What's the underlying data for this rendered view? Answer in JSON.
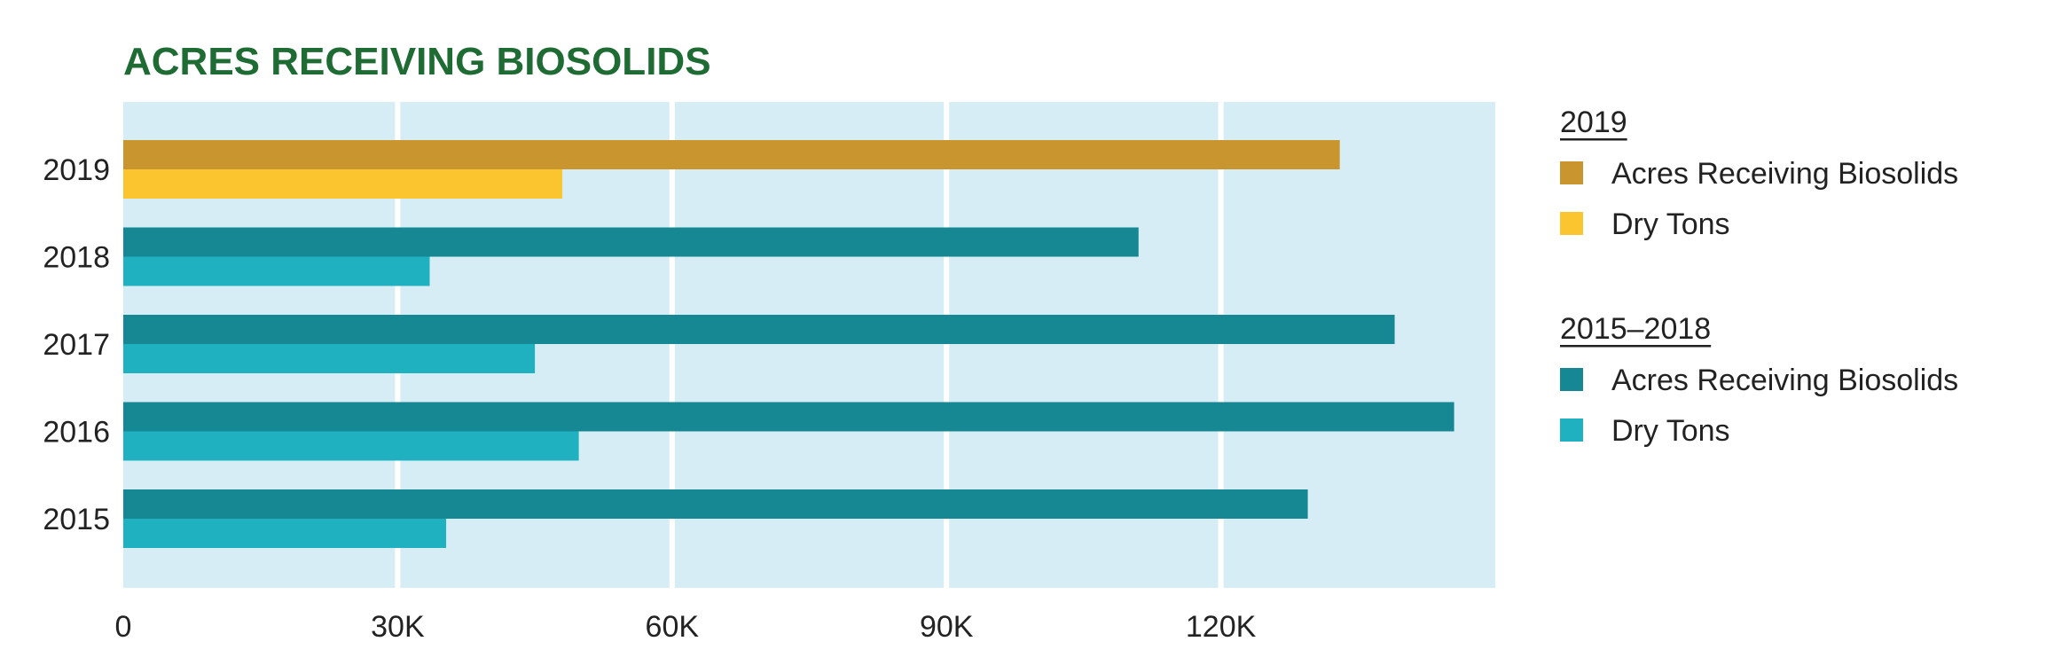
{
  "chart_data": {
    "type": "bar",
    "orientation": "horizontal",
    "title": "ACRES RECEIVING BIOSOLIDS",
    "xlabel": "",
    "ylabel": "",
    "xlim": [
      0,
      150000
    ],
    "x_ticks": [
      {
        "value": 0,
        "label": "0"
      },
      {
        "value": 30000,
        "label": "30K"
      },
      {
        "value": 60000,
        "label": "60K"
      },
      {
        "value": 90000,
        "label": "90K"
      },
      {
        "value": 120000,
        "label": "120K"
      }
    ],
    "grid": true,
    "legend_position": "right",
    "categories": [
      "2019",
      "2018",
      "2017",
      "2016",
      "2015"
    ],
    "series": [
      {
        "key": "acres",
        "values": [
          133000,
          111000,
          139000,
          145500,
          129500
        ]
      },
      {
        "key": "tons",
        "values": [
          48000,
          33500,
          45000,
          49800,
          35300
        ]
      }
    ],
    "colors": {
      "acres_2019": "#c9952f",
      "tons_2019": "#fbc530",
      "acres_other": "#168894",
      "tons_other": "#20b1c1",
      "plot_bg": "#d7edf5",
      "gridline": "#ffffff"
    },
    "legend": [
      {
        "heading": "2019",
        "items": [
          {
            "label": "Acres Receiving Biosolids",
            "color": "#c9952f"
          },
          {
            "label": "Dry Tons",
            "color": "#fbc530"
          }
        ]
      },
      {
        "heading": "2015–2018",
        "items": [
          {
            "label": "Acres Receiving Biosolids",
            "color": "#168894"
          },
          {
            "label": "Dry Tons",
            "color": "#20b1c1"
          }
        ]
      }
    ]
  }
}
